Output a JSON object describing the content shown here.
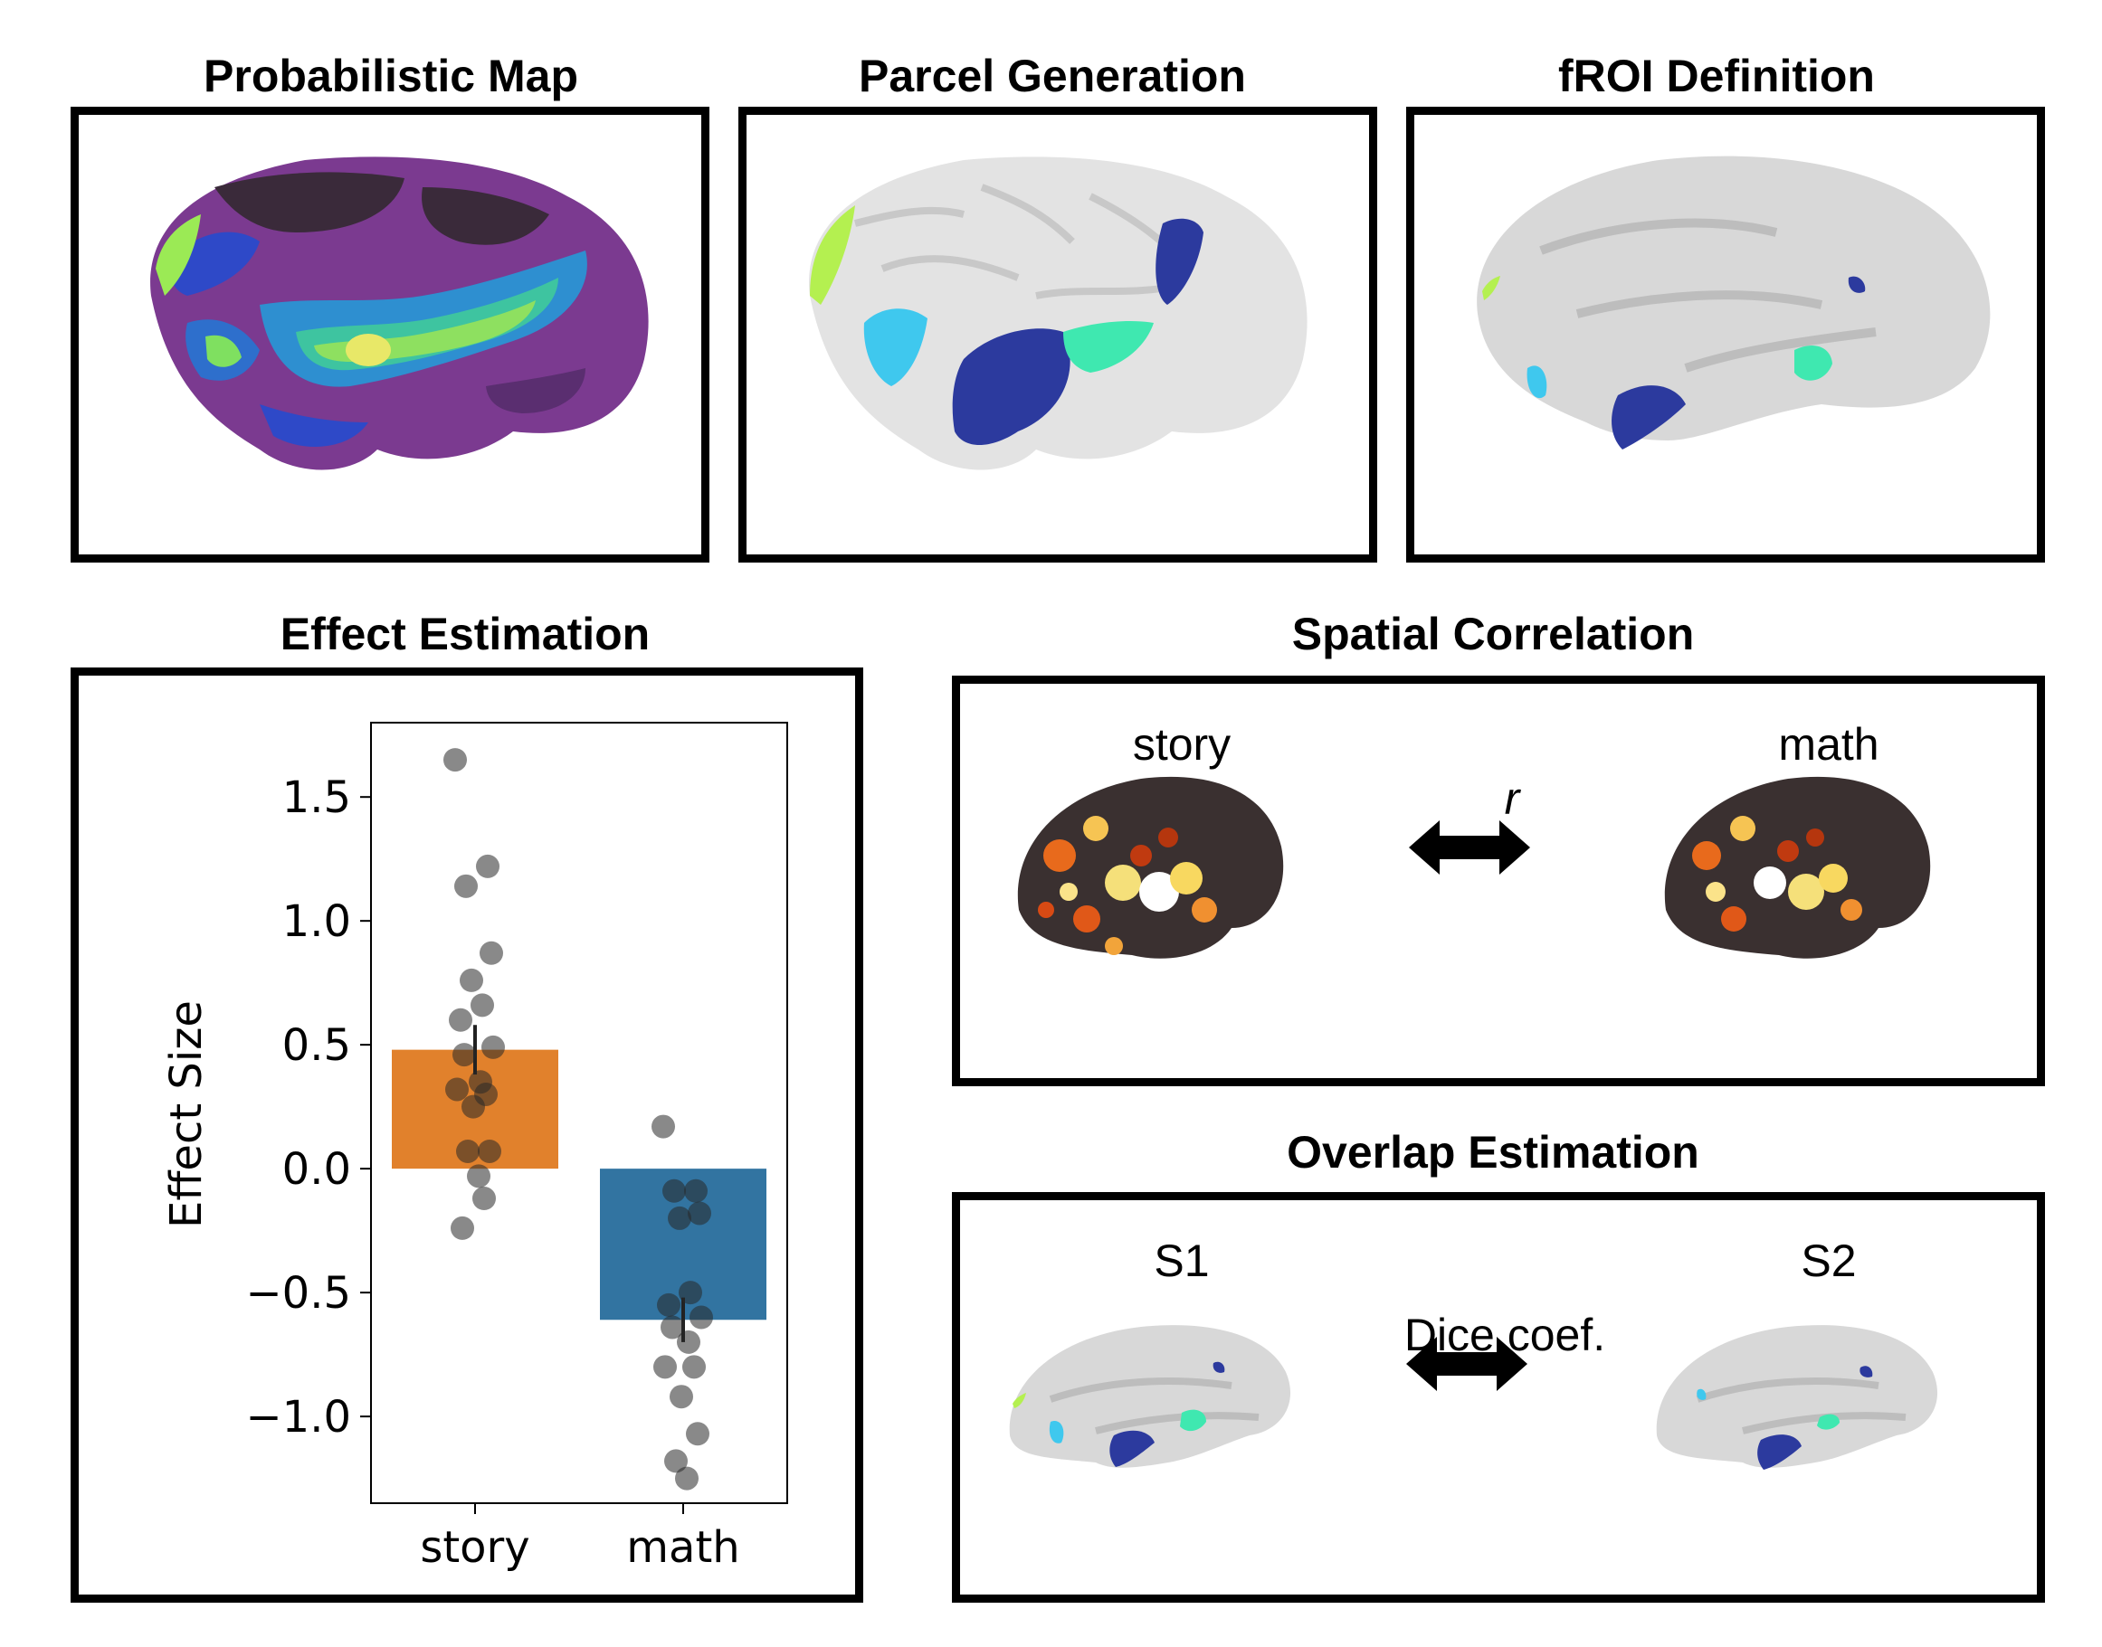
{
  "titles": {
    "probabilistic_map": "Probabilistic Map",
    "parcel_generation": "Parcel Generation",
    "froi_definition": "fROI Definition",
    "effect_estimation": "Effect Estimation",
    "spatial_correlation": "Spatial Correlation",
    "overlap_estimation": "Overlap Estimation"
  },
  "spatial_correlation": {
    "left_label": "story",
    "right_label": "math",
    "relation_label": "r"
  },
  "overlap_estimation": {
    "left_label": "S1",
    "right_label": "S2",
    "relation_label": "Dice coef."
  },
  "colors": {
    "story_bar": "#e1812c",
    "math_bar": "#3274a1",
    "parcel_lightblue": "#3fc8ee",
    "parcel_navy": "#2c3a9e",
    "parcel_teal": "#3fe8b0",
    "parcel_lime": "#b4f050"
  },
  "chart_data": {
    "type": "bar",
    "ylabel": "Effect Size",
    "categories": [
      "story",
      "math"
    ],
    "values": [
      0.48,
      -0.61
    ],
    "errors": [
      0.1,
      0.09
    ],
    "ylim": [
      -1.35,
      1.8
    ],
    "yticks": [
      1.5,
      1.0,
      0.5,
      0.0,
      -0.5,
      -1.0
    ],
    "ytick_labels": [
      "1.5",
      "1.0",
      "0.5",
      "0.0",
      "−0.5",
      "−1.0"
    ],
    "points": {
      "story": [
        1.65,
        1.22,
        1.14,
        0.87,
        0.76,
        0.66,
        0.6,
        0.49,
        0.46,
        0.35,
        0.32,
        0.3,
        0.25,
        0.07,
        0.07,
        -0.03,
        -0.12,
        -0.24
      ],
      "math": [
        0.17,
        -0.09,
        -0.09,
        -0.18,
        -0.2,
        -0.5,
        -0.55,
        -0.6,
        -0.64,
        -0.7,
        -0.8,
        -0.8,
        -0.92,
        -1.07,
        -1.18,
        -1.25
      ]
    }
  }
}
